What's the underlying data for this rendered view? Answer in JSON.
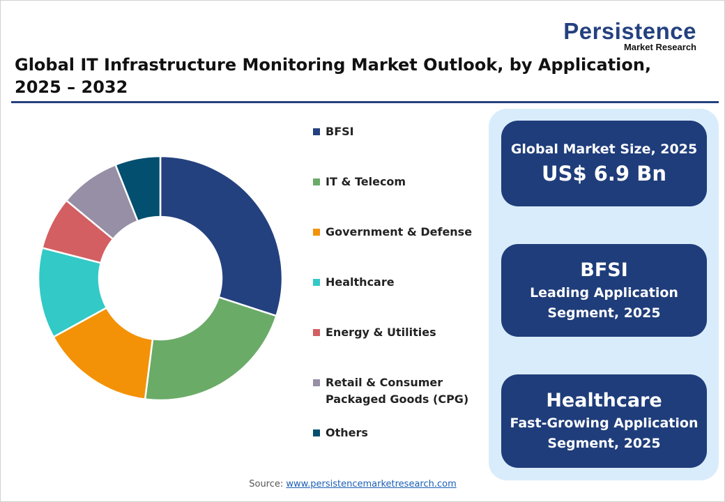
{
  "logo": {
    "main": "Persistence",
    "sub": "Market Research"
  },
  "title": "Global IT Infrastructure Monitoring Market Outlook, by Application, 2025 – 2032",
  "chart_data": {
    "type": "pie",
    "donut": true,
    "title": "Global IT Infrastructure Monitoring Market Outlook, by Application, 2025 – 2032",
    "legend_position": "right",
    "categories": [
      "BFSI",
      "IT & Telecom",
      "Government & Defense",
      "Healthcare",
      "Energy & Utilities",
      "Retail & Consumer Packaged Goods (CPG)",
      "Others"
    ],
    "legend_lines": [
      [
        "BFSI"
      ],
      [
        "IT & Telecom"
      ],
      [
        "Government & Defense"
      ],
      [
        "Healthcare"
      ],
      [
        "Energy & Utilities"
      ],
      [
        "Retail & Consumer",
        "Packaged Goods (CPG)"
      ],
      [
        "Others"
      ]
    ],
    "values": [
      30,
      22,
      15,
      12,
      7,
      8,
      6
    ],
    "unit": "% share (estimated)",
    "colors": [
      "#24417f",
      "#6aab68",
      "#f39207",
      "#33c9c6",
      "#d35f63",
      "#968fa5",
      "#034f70"
    ]
  },
  "cards": [
    {
      "line1": "Global Market Size, 2025",
      "line2": "US$ 6.9 Bn"
    },
    {
      "line1": "BFSI",
      "line2": "Leading Application",
      "line3": "Segment, 2025"
    },
    {
      "line1": "Healthcare",
      "line2": "Fast-Growing Application",
      "line3": "Segment, 2025"
    }
  ],
  "source": {
    "label": "Source:",
    "link": "www.persistencemarketresearch.com"
  }
}
